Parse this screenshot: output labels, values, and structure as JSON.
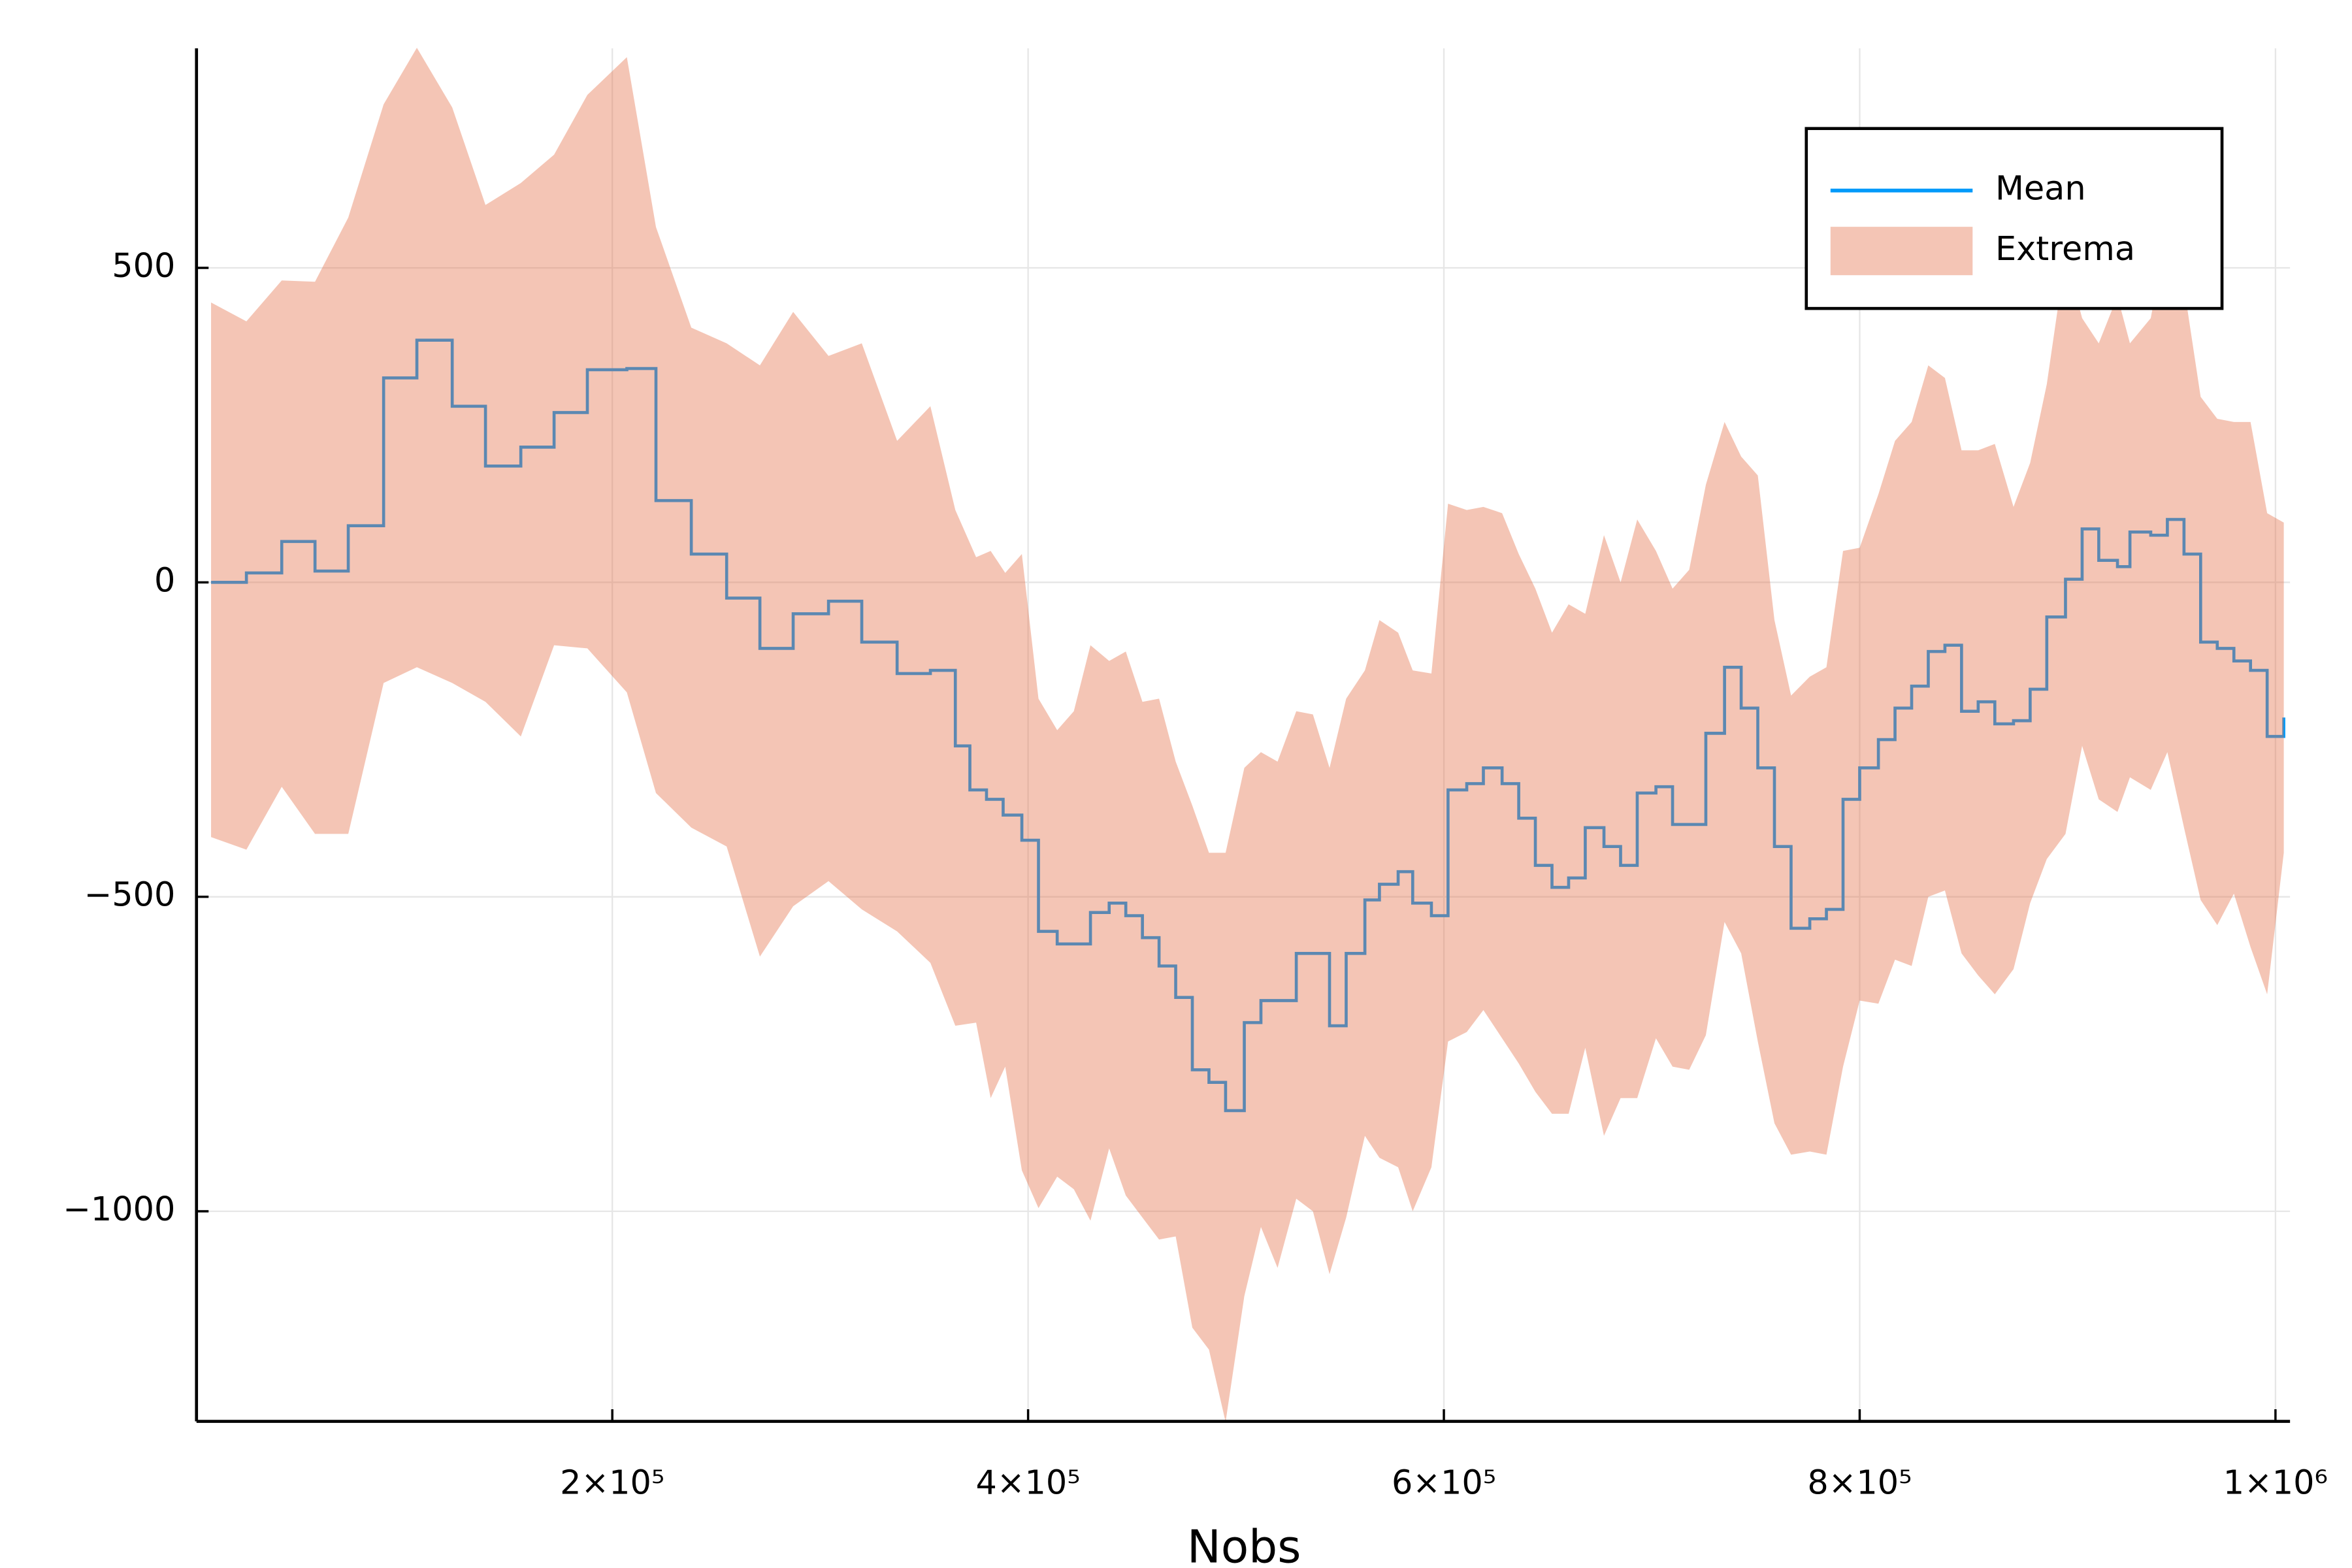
{
  "chart_data": {
    "type": "band_step",
    "x_label": "Nobs",
    "xlim": [
      0,
      1007000
    ],
    "ylim": [
      -1334,
      849
    ],
    "xticks": [
      {
        "value": 200000,
        "label": "2×10⁵"
      },
      {
        "value": 400000,
        "label": "4×10⁵"
      },
      {
        "value": 600000,
        "label": "6×10⁵"
      },
      {
        "value": 800000,
        "label": "8×10⁵"
      },
      {
        "value": 1000000,
        "label": "1×10⁶"
      }
    ],
    "yticks": [
      {
        "value": -1000,
        "label": "−1000"
      },
      {
        "value": -500,
        "label": "−500"
      },
      0,
      500
    ],
    "grid": true,
    "legend": "top right",
    "series": [
      {
        "name": "Mean",
        "color": "#009AFA",
        "x": [
          7000,
          24000,
          41000,
          57000,
          73000,
          90000,
          106000,
          123000,
          139000,
          156000,
          172000,
          188000,
          207000,
          221000,
          238000,
          255000,
          271000,
          287000,
          304000,
          320000,
          337000,
          353000,
          365000,
          372000,
          380000,
          388000,
          397000,
          405000,
          414000,
          430000,
          439000,
          447000,
          455000,
          463000,
          471000,
          479000,
          487000,
          495000,
          504000,
          512000,
          529000,
          545000,
          553000,
          562000,
          569000,
          578000,
          585000,
          594000,
          602000,
          611000,
          619000,
          628000,
          636000,
          644000,
          652000,
          660000,
          668000,
          677000,
          685000,
          693000,
          702000,
          710000,
          726000,
          735000,
          743000,
          751000,
          759000,
          767000,
          776000,
          784000,
          792000,
          800000,
          809000,
          817000,
          825000,
          833000,
          841000,
          849000,
          857000,
          865000,
          874000,
          882000,
          890000,
          899000,
          907000,
          915000,
          924000,
          930000,
          940000,
          948000,
          956000,
          964000,
          972000,
          980000,
          988000,
          996000,
          1004000
        ],
        "values": [
          0,
          15,
          65,
          18,
          90,
          325,
          385,
          280,
          185,
          215,
          270,
          338,
          340,
          130,
          45,
          -25,
          -105,
          -50,
          -30,
          -95,
          -145,
          -140,
          -260,
          -330,
          -345,
          -370,
          -410,
          -555,
          -575,
          -525,
          -510,
          -530,
          -565,
          -610,
          -660,
          -775,
          -795,
          -840,
          -700,
          -665,
          -590,
          -705,
          -590,
          -505,
          -480,
          -460,
          -510,
          -530,
          -330,
          -320,
          -295,
          -320,
          -375,
          -450,
          -485,
          -470,
          -390,
          -420,
          -450,
          -335,
          -325,
          -385,
          -240,
          -135,
          -200,
          -295,
          -420,
          -550,
          -535,
          -520,
          -345,
          -295,
          -250,
          -200,
          -165,
          -110,
          -100,
          -205,
          -190,
          -225,
          -220,
          -170,
          -55,
          5,
          85,
          35,
          25,
          80,
          75,
          100,
          45,
          -95,
          -105,
          -125,
          -140,
          -245,
          -215
        ]
      },
      {
        "name": "Extrema",
        "color": "#E36F47",
        "fill_alpha": 0.4,
        "x": [
          7000,
          24000,
          41000,
          57000,
          73000,
          90000,
          106000,
          123000,
          139000,
          156000,
          172000,
          188000,
          207000,
          221000,
          238000,
          255000,
          271000,
          287000,
          304000,
          320000,
          337000,
          353000,
          365000,
          375000,
          382000,
          389000,
          397000,
          405000,
          414000,
          422000,
          430000,
          439000,
          447000,
          455000,
          463000,
          471000,
          479000,
          487000,
          495000,
          504000,
          512000,
          520000,
          529000,
          537000,
          545000,
          553000,
          562000,
          569000,
          578000,
          585000,
          594000,
          602000,
          611000,
          619000,
          628000,
          636000,
          644000,
          652000,
          660000,
          668000,
          677000,
          685000,
          693000,
          702000,
          710000,
          718000,
          726000,
          735000,
          743000,
          751000,
          759000,
          767000,
          776000,
          784000,
          792000,
          800000,
          809000,
          817000,
          825000,
          833000,
          841000,
          849000,
          857000,
          865000,
          874000,
          882000,
          890000,
          899000,
          907000,
          915000,
          924000,
          930000,
          940000,
          948000,
          956000,
          964000,
          972000,
          980000,
          988000,
          996000,
          1004000
        ],
        "upper": [
          445,
          415,
          480,
          478,
          580,
          760,
          850,
          755,
          600,
          635,
          680,
          775,
          835,
          565,
          405,
          380,
          345,
          430,
          360,
          380,
          225,
          280,
          115,
          40,
          50,
          15,
          45,
          -185,
          -235,
          -205,
          -100,
          -125,
          -110,
          -190,
          -185,
          -285,
          -355,
          -430,
          -430,
          -295,
          -270,
          -285,
          -205,
          -210,
          -295,
          -185,
          -140,
          -60,
          -80,
          -140,
          -145,
          125,
          115,
          120,
          110,
          45,
          -10,
          -80,
          -35,
          -50,
          75,
          0,
          100,
          50,
          -10,
          20,
          155,
          255,
          200,
          170,
          -60,
          -180,
          -150,
          -135,
          50,
          55,
          140,
          225,
          255,
          345,
          325,
          210,
          210,
          220,
          120,
          190,
          315,
          520,
          420,
          380,
          455,
          380,
          420,
          560,
          470,
          295,
          260,
          255,
          255,
          110,
          95
        ],
        "lower": [
          -405,
          -425,
          -325,
          -400,
          -400,
          -160,
          -135,
          -160,
          -190,
          -245,
          -100,
          -105,
          -175,
          -335,
          -390,
          -420,
          -595,
          -515,
          -475,
          -520,
          -555,
          -605,
          -705,
          -700,
          -820,
          -770,
          -935,
          -995,
          -945,
          -965,
          -1015,
          -900,
          -975,
          -1010,
          -1045,
          -1040,
          -1185,
          -1220,
          -1335,
          -1135,
          -1025,
          -1090,
          -980,
          -1000,
          -1100,
          -1010,
          -880,
          -915,
          -930,
          -1000,
          -930,
          -730,
          -715,
          -680,
          -725,
          -765,
          -810,
          -845,
          -845,
          -740,
          -880,
          -820,
          -820,
          -725,
          -770,
          -775,
          -720,
          -540,
          -590,
          -730,
          -860,
          -910,
          -905,
          -910,
          -770,
          -665,
          -670,
          -600,
          -610,
          -500,
          -490,
          -590,
          -625,
          -655,
          -615,
          -510,
          -440,
          -400,
          -260,
          -345,
          -365,
          -310,
          -330,
          -270,
          -390,
          -505,
          -545,
          -495,
          -580,
          -655,
          -430
        ]
      }
    ]
  }
}
